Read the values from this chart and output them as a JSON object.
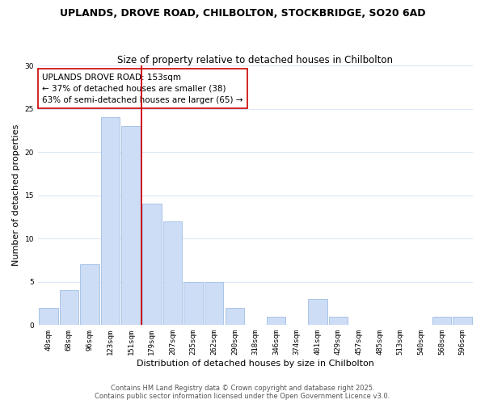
{
  "title": "UPLANDS, DROVE ROAD, CHILBOLTON, STOCKBRIDGE, SO20 6AD",
  "subtitle": "Size of property relative to detached houses in Chilbolton",
  "xlabel": "Distribution of detached houses by size in Chilbolton",
  "ylabel": "Number of detached properties",
  "bar_color": "#ccddf5",
  "bar_edge_color": "#aac4e8",
  "background_color": "#ffffff",
  "grid_color": "#dce6f5",
  "bin_labels": [
    "40sqm",
    "68sqm",
    "96sqm",
    "123sqm",
    "151sqm",
    "179sqm",
    "207sqm",
    "235sqm",
    "262sqm",
    "290sqm",
    "318sqm",
    "346sqm",
    "374sqm",
    "401sqm",
    "429sqm",
    "457sqm",
    "485sqm",
    "513sqm",
    "540sqm",
    "568sqm",
    "596sqm"
  ],
  "bar_values": [
    2,
    4,
    7,
    24,
    23,
    14,
    12,
    5,
    5,
    2,
    0,
    1,
    0,
    3,
    1,
    0,
    0,
    0,
    0,
    1,
    1
  ],
  "ylim": [
    0,
    30
  ],
  "yticks": [
    0,
    5,
    10,
    15,
    20,
    25,
    30
  ],
  "vline_index": 4,
  "vline_color": "#cc0000",
  "annotation_title": "UPLANDS DROVE ROAD: 153sqm",
  "annotation_line1": "← 37% of detached houses are smaller (38)",
  "annotation_line2": "63% of semi-detached houses are larger (65) →",
  "footer_line1": "Contains HM Land Registry data © Crown copyright and database right 2025.",
  "footer_line2": "Contains public sector information licensed under the Open Government Licence v3.0.",
  "title_fontsize": 9,
  "subtitle_fontsize": 8.5,
  "axis_label_fontsize": 8,
  "tick_fontsize": 6.5,
  "annotation_fontsize": 7.5,
  "footer_fontsize": 6
}
